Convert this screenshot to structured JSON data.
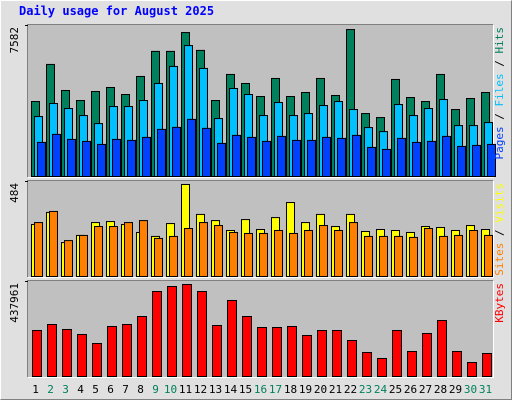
{
  "title": "Daily usage for August 2025",
  "chart_data": [
    {
      "type": "bar",
      "legend_separator": " / ",
      "ylim": [
        0,
        7582
      ],
      "yticks": [
        7582
      ],
      "series": [
        {
          "name": "Hits",
          "color": "#00805c",
          "values": [
            3790,
            5640,
            4340,
            3840,
            4290,
            4490,
            4140,
            5040,
            6290,
            6290,
            7230,
            6340,
            3840,
            5140,
            4690,
            4040,
            4940,
            4040,
            4240,
            4940,
            4090,
            7380,
            3190,
            2990,
            4890,
            3990,
            3790,
            5140,
            3390,
            3940,
            4240
          ]
        },
        {
          "name": "Files",
          "color": "#00c0ff",
          "values": [
            3040,
            3690,
            3440,
            3090,
            2690,
            3540,
            3540,
            3840,
            4690,
            5540,
            6580,
            5440,
            2940,
            4440,
            4140,
            3090,
            3740,
            3090,
            3190,
            3590,
            3790,
            3390,
            2490,
            2290,
            3640,
            3090,
            3440,
            3890,
            2590,
            2590,
            2740
          ]
        },
        {
          "name": "Pages",
          "color": "#0040ff",
          "values": [
            1750,
            2150,
            1900,
            1800,
            1650,
            1900,
            1850,
            2000,
            2400,
            2500,
            2900,
            2450,
            1700,
            2100,
            2000,
            1800,
            2050,
            1850,
            1850,
            2000,
            1950,
            2100,
            1500,
            1400,
            1950,
            1750,
            1800,
            2050,
            1550,
            1600,
            1650
          ]
        }
      ]
    },
    {
      "type": "bar",
      "legend_separator": " / ",
      "ylim": [
        0,
        484
      ],
      "yticks": [
        484
      ],
      "series": [
        {
          "name": "Visits",
          "color": "#ffff00",
          "values": [
            267,
            328,
            176,
            212,
            277,
            282,
            267,
            227,
            207,
            272,
            469,
            318,
            287,
            237,
            292,
            242,
            302,
            378,
            277,
            318,
            257,
            318,
            232,
            242,
            237,
            227,
            257,
            252,
            237,
            262,
            242
          ]
        },
        {
          "name": "Sites",
          "color": "#ff8000",
          "values": [
            277,
            333,
            186,
            212,
            257,
            257,
            277,
            287,
            197,
            207,
            247,
            277,
            262,
            227,
            222,
            222,
            237,
            222,
            237,
            262,
            237,
            277,
            207,
            207,
            207,
            202,
            247,
            207,
            212,
            237,
            212
          ]
        }
      ]
    },
    {
      "type": "bar",
      "ylim": [
        0,
        437961
      ],
      "yticks": [
        437961
      ],
      "categories": [
        "1",
        "2",
        "3",
        "4",
        "5",
        "6",
        "7",
        "8",
        "9",
        "10",
        "11",
        "12",
        "13",
        "14",
        "15",
        "16",
        "17",
        "18",
        "19",
        "20",
        "21",
        "22",
        "23",
        "24",
        "25",
        "26",
        "27",
        "28",
        "29",
        "30",
        "31"
      ],
      "category_colors": [
        "#000000",
        "#00805c",
        "#00805c",
        "#000000",
        "#000000",
        "#000000",
        "#000000",
        "#000000",
        "#00805c",
        "#00805c",
        "#000000",
        "#000000",
        "#000000",
        "#000000",
        "#000000",
        "#00805c",
        "#00805c",
        "#000000",
        "#000000",
        "#000000",
        "#000000",
        "#000000",
        "#00805c",
        "#00805c",
        "#000000",
        "#000000",
        "#000000",
        "#000000",
        "#000000",
        "#00805c",
        "#00805c"
      ],
      "series": [
        {
          "name": "KBytes",
          "color": "#ff0000",
          "values": [
            214400,
            241800,
            219000,
            196200,
            155100,
            232700,
            241800,
            278300,
            392300,
            415100,
            424300,
            392300,
            237200,
            351300,
            278300,
            228100,
            228100,
            232700,
            191600,
            214400,
            214400,
            168800,
            114100,
            86700,
            214400,
            118600,
            200700,
            260000,
            118600,
            68400,
            109500
          ]
        }
      ]
    }
  ]
}
